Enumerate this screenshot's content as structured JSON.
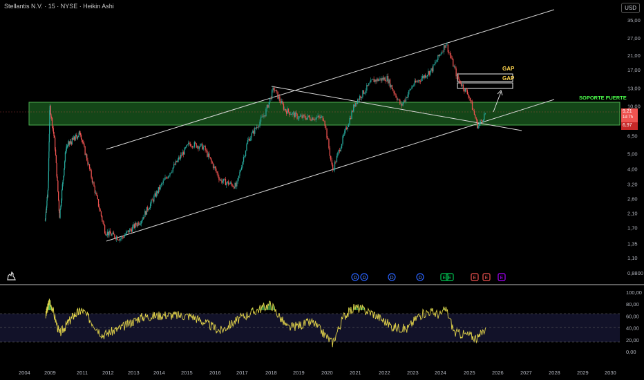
{
  "header": {
    "title": "Stellantis N.V. · 15 · NYSE · Heikin Ashi",
    "currency": "USD"
  },
  "annotations": {
    "support_label": "SOPORTE FUERTE",
    "gap_upper": "GAP",
    "gap_lower": "GAP"
  },
  "price_tags": {
    "last": "9,21",
    "countdown": "1d 7h",
    "low": "6,97"
  },
  "colors": {
    "up": "#26a69a",
    "down": "#ef5350",
    "zone_fill": "#1b5e20",
    "zone_border": "#4caf50",
    "support_text": "#4cff4c",
    "gap": "#ffd54f",
    "oscillator": "#e3d44a",
    "channel": "#d9d9d9"
  },
  "events": {
    "dividends": [
      "D",
      "D",
      "D",
      "D"
    ],
    "earnings": [
      "E",
      "E",
      "E",
      "E",
      "E"
    ]
  },
  "chart_data": [
    {
      "type": "line",
      "chart_style": "candlestick (Heikin Ashi)",
      "title": "Stellantis N.V. · 15 · NYSE · Heikin Ashi",
      "y_scale": "log",
      "y_ticks": [
        "35,00",
        "27,00",
        "21,00",
        "17,00",
        "13,00",
        "10,00",
        "8,00",
        "6,50",
        "5,00",
        "4,00",
        "3,20",
        "2,60",
        "2,10",
        "1,70",
        "1,35",
        "1,10",
        "0,8800"
      ],
      "x_ticks": [
        "2004",
        "2009",
        "2011",
        "2012",
        "2013",
        "2014",
        "2015",
        "2016",
        "2017",
        "2018",
        "2019",
        "2020",
        "2021",
        "2022",
        "2023",
        "2024",
        "2025",
        "2026",
        "2027",
        "2028",
        "2029",
        "2030"
      ],
      "series": [
        {
          "values_approx": [
            {
              "x": "2008.1",
              "y": 1.9
            },
            {
              "x": "2008.7",
              "y": 3.0
            },
            {
              "x": "2009.0",
              "y": 10.0
            },
            {
              "x": "2009.3",
              "y": 6.0
            },
            {
              "x": "2009.6",
              "y": 2.0
            },
            {
              "x": "2010.0",
              "y": 5.5
            },
            {
              "x": "2010.9",
              "y": 6.8
            },
            {
              "x": "2011.2",
              "y": 4.5
            },
            {
              "x": "2011.9",
              "y": 1.6
            },
            {
              "x": "2012.5",
              "y": 1.45
            },
            {
              "x": "2013.3",
              "y": 1.9
            },
            {
              "x": "2014.2",
              "y": 3.4
            },
            {
              "x": "2015.1",
              "y": 5.8
            },
            {
              "x": "2015.6",
              "y": 5.5
            },
            {
              "x": "2016.2",
              "y": 3.4
            },
            {
              "x": "2016.8",
              "y": 3.1
            },
            {
              "x": "2017.2",
              "y": 6.0
            },
            {
              "x": "2017.8",
              "y": 9.0
            },
            {
              "x": "2018.1",
              "y": 13.0
            },
            {
              "x": "2018.5",
              "y": 9.5
            },
            {
              "x": "2019.0",
              "y": 8.5
            },
            {
              "x": "2019.9",
              "y": 8.4
            },
            {
              "x": "2020.2",
              "y": 3.9
            },
            {
              "x": "2020.6",
              "y": 6.5
            },
            {
              "x": "2021.0",
              "y": 10.5
            },
            {
              "x": "2021.6",
              "y": 14.5
            },
            {
              "x": "2022.1",
              "y": 15.0
            },
            {
              "x": "2022.6",
              "y": 10.0
            },
            {
              "x": "2023.0",
              "y": 13.5
            },
            {
              "x": "2023.7",
              "y": 17.0
            },
            {
              "x": "2024.2",
              "y": 25.0
            },
            {
              "x": "2024.6",
              "y": 15.0
            },
            {
              "x": "2025.0",
              "y": 11.5
            },
            {
              "x": "2025.3",
              "y": 7.4
            },
            {
              "x": "2025.6",
              "y": 9.2
            }
          ]
        }
      ],
      "zones": [
        {
          "label": "SOPORTE FUERTE",
          "y_range": [
            6.97,
            10.3
          ],
          "x_range": [
            "2004",
            "2030"
          ]
        },
        {
          "label": "GAP",
          "y_range": [
            15.0,
            16.2
          ],
          "x_range": [
            "2024.5",
            "2025.8"
          ]
        },
        {
          "label": "GAP",
          "y_range": [
            13.0,
            14.4
          ],
          "x_range": [
            "2024.5",
            "2025.8"
          ]
        }
      ],
      "lines": [
        {
          "from": {
            "x": "2012.0",
            "y": 1.45
          },
          "to": {
            "x": "2029.0",
            "y": 11.5
          }
        },
        {
          "from": {
            "x": "2012.0",
            "y": 6.0
          },
          "to": {
            "x": "2029.0",
            "y": 42.0
          }
        },
        {
          "from": {
            "x": "2017.9",
            "y": 13.5
          },
          "to": {
            "x": "2027.0",
            "y": 6.5
          }
        }
      ]
    },
    {
      "type": "line",
      "y_ticks": [
        "100,00",
        "80,00",
        "60,00",
        "40,00",
        "20,00",
        "0,00"
      ],
      "reference_lines": [
        70,
        50,
        30
      ],
      "series": [
        {
          "values_approx": [
            {
              "x": "2008.2",
              "y": 60
            },
            {
              "x": "2009.0",
              "y": 88
            },
            {
              "x": "2009.6",
              "y": 30
            },
            {
              "x": "2010.5",
              "y": 62
            },
            {
              "x": "2011.0",
              "y": 70
            },
            {
              "x": "2011.8",
              "y": 28
            },
            {
              "x": "2012.5",
              "y": 40
            },
            {
              "x": "2013.3",
              "y": 58
            },
            {
              "x": "2014.2",
              "y": 62
            },
            {
              "x": "2015.2",
              "y": 60
            },
            {
              "x": "2016.2",
              "y": 35
            },
            {
              "x": "2017.0",
              "y": 58
            },
            {
              "x": "2017.6",
              "y": 72
            },
            {
              "x": "2018.0",
              "y": 80
            },
            {
              "x": "2018.6",
              "y": 40
            },
            {
              "x": "2019.5",
              "y": 50
            },
            {
              "x": "2020.2",
              "y": 15
            },
            {
              "x": "2020.6",
              "y": 60
            },
            {
              "x": "2021.0",
              "y": 75
            },
            {
              "x": "2021.6",
              "y": 65
            },
            {
              "x": "2022.3",
              "y": 42
            },
            {
              "x": "2022.8",
              "y": 38
            },
            {
              "x": "2023.2",
              "y": 60
            },
            {
              "x": "2023.6",
              "y": 68
            },
            {
              "x": "2024.0",
              "y": 62
            },
            {
              "x": "2024.2",
              "y": 72
            },
            {
              "x": "2024.5",
              "y": 32
            },
            {
              "x": "2025.0",
              "y": 28
            },
            {
              "x": "2025.3",
              "y": 22
            },
            {
              "x": "2025.6",
              "y": 42
            }
          ]
        }
      ]
    }
  ]
}
